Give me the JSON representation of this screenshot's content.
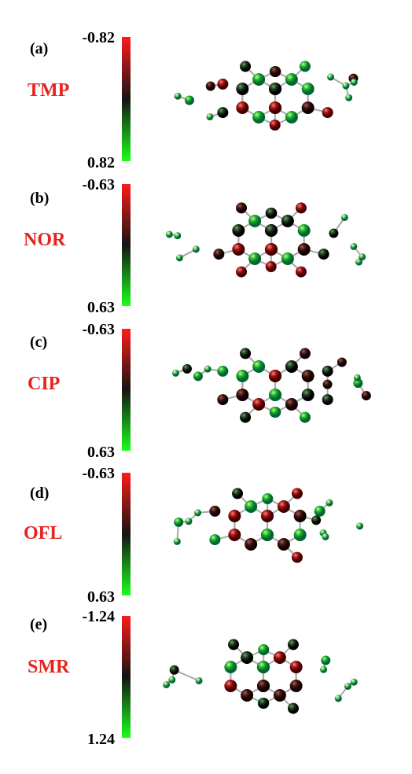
{
  "panels": [
    {
      "tag": "(a)",
      "name": "TMP",
      "scale_top": "-0.82",
      "scale_bottom": "0.82"
    },
    {
      "tag": "(b)",
      "name": "NOR",
      "scale_top": "-0.63",
      "scale_bottom": "0.63"
    },
    {
      "tag": "(c)",
      "name": "CIP",
      "scale_top": "-0.63",
      "scale_bottom": "0.63"
    },
    {
      "tag": "(d)",
      "name": "OFL",
      "scale_top": "-0.63",
      "scale_bottom": "0.63"
    },
    {
      "tag": "(e)",
      "name": "SMR",
      "scale_top": "-1.24",
      "scale_bottom": "1.24"
    }
  ]
}
